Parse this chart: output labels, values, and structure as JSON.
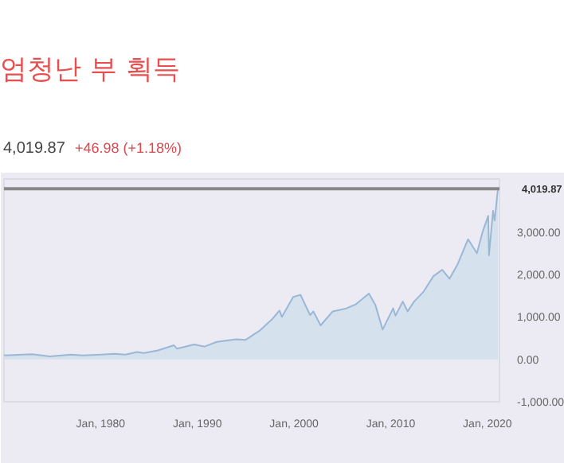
{
  "chart_data": {
    "type": "area",
    "title": "엄청난 부 획득",
    "annotations": [
      "4,019.87",
      "+46.98 (+1.18%)"
    ],
    "x": [
      "1970-01",
      "1972-12",
      "1974-10",
      "1976-12",
      "1978-03",
      "1980-01",
      "1981-06",
      "1982-08",
      "1983-10",
      "1984-07",
      "1985-12",
      "1987-08",
      "1987-12",
      "1989-09",
      "1990-10",
      "1992-01",
      "1994-01",
      "1995-01",
      "1996-06",
      "1997-10",
      "1998-07",
      "1998-10",
      "1999-12",
      "2000-09",
      "2001-09",
      "2002-01",
      "2002-10",
      "2004-01",
      "2005-06",
      "2006-06",
      "2007-10",
      "2008-06",
      "2009-03",
      "2010-04",
      "2010-07",
      "2011-04",
      "2011-10",
      "2012-06",
      "2013-06",
      "2014-06",
      "2015-05",
      "2016-02",
      "2016-12",
      "2018-01",
      "2018-12",
      "2019-07",
      "2020-02",
      "2020-03",
      "2020-08",
      "2020-10",
      "2021-02"
    ],
    "series": [
      {
        "color": "#9ab8d6",
        "values": [
          90,
          120,
          70,
          110,
          90,
          110,
          130,
          110,
          170,
          150,
          210,
          330,
          250,
          350,
          300,
          410,
          470,
          460,
          670,
          950,
          1150,
          1000,
          1470,
          1520,
          1040,
          1130,
          800,
          1130,
          1200,
          1300,
          1550,
          1280,
          700,
          1200,
          1030,
          1360,
          1130,
          1360,
          1600,
          1960,
          2110,
          1900,
          2240,
          2830,
          2500,
          3000,
          3380,
          2450,
          3500,
          3270,
          4019.87
        ]
      }
    ],
    "xlim": [
      "1970-01",
      "2021-04"
    ],
    "xticks": [
      {
        "value": "1980-01",
        "label": "Jan, 1980"
      },
      {
        "value": "1990-01",
        "label": "Jan, 1990"
      },
      {
        "value": "2000-01",
        "label": "Jan, 2000"
      },
      {
        "value": "2010-01",
        "label": "Jan, 2010"
      },
      {
        "value": "2020-01",
        "label": "Jan, 2020"
      }
    ],
    "ylim": [
      -1000,
      4250
    ],
    "yticks": [
      {
        "value": -1000,
        "label": "-1,000.00"
      },
      {
        "value": 0,
        "label": "0.00"
      },
      {
        "value": 1000,
        "label": "1,000.00"
      },
      {
        "value": 2000,
        "label": "2,000.00"
      },
      {
        "value": 3000,
        "label": "3,000.00"
      }
    ],
    "ref_lines": [
      {
        "axis": "y",
        "value": 4019.87,
        "label": "4,019.87",
        "color": "#888888"
      }
    ],
    "grid": false
  }
}
